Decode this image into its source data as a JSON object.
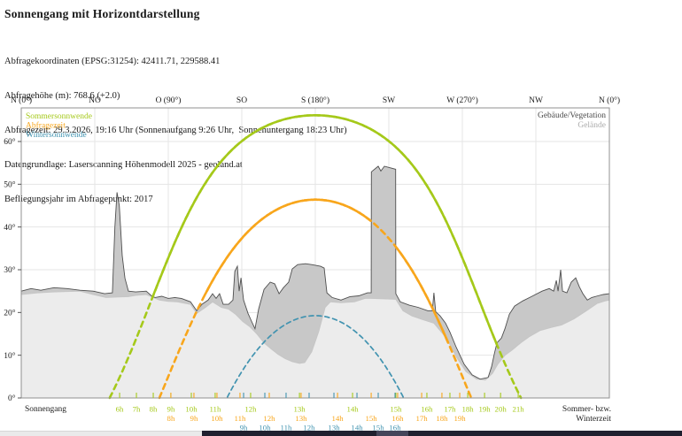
{
  "header": {
    "title": "Sonnengang mit Horizontdarstellung",
    "meta_lines": [
      "Abfragekoordinaten (EPSG:31254): 42411.71, 229588.41",
      "Abfragehöhe (m): 768.6 (+2.0)",
      "Abfragezeit: 29.3.2026, 19:16 Uhr (Sonnenaufgang 9:26 Uhr,  Sonnenuntergang 18:23 Uhr)",
      "Datengrundlage: Laserscanning Höhenmodell 2025 - geoland.at",
      "Befliegungsjahr im Abfragepunkt: 2017"
    ]
  },
  "chart_data": {
    "type": "line",
    "title": "Sonnengang mit Horizontdarstellung",
    "latitude_deg": 47.3,
    "axes": {
      "x_top_compass": [
        {
          "label": "N (0°)",
          "az": 0
        },
        {
          "label": "NO",
          "az": 45
        },
        {
          "label": "O (90°)",
          "az": 90
        },
        {
          "label": "SO",
          "az": 135
        },
        {
          "label": "S (180°)",
          "az": 180
        },
        {
          "label": "SW",
          "az": 225
        },
        {
          "label": "W (270°)",
          "az": 270
        },
        {
          "label": "NW",
          "az": 315
        },
        {
          "label": "N (0°)",
          "az": 360
        }
      ],
      "y_ticks_deg": [
        0,
        10,
        20,
        30,
        40,
        50,
        60
      ],
      "y_max_deg": 68,
      "x_range_deg": [
        0,
        360
      ],
      "grid": true
    },
    "legend": {
      "series": [
        {
          "label": "Sommersonnwende",
          "color": "#a5c91a"
        },
        {
          "label": "Abfragezeit",
          "color": "#f8a61c"
        },
        {
          "label": "Wintersonnwende",
          "color": "#4193b0"
        }
      ],
      "horizon": [
        {
          "label": "Gebäude/Vegetation",
          "color": "#4a4a4a"
        },
        {
          "label": "Gelände",
          "color": "#ababab"
        }
      ]
    },
    "sun_series": [
      {
        "name": "Sommersonnwende",
        "color": "#a5c91a",
        "declination_deg": 23.44,
        "peak_elevation_deg": 66.1,
        "width": 2.6,
        "dash": "6 5",
        "visible_az_ranges": [
          [
            80.4,
            291
          ]
        ],
        "hour_labels": [
          [
            "6h",
            60.2
          ],
          [
            "7h",
            70.5
          ],
          [
            "8h",
            80.8
          ],
          [
            "9h",
            91.6
          ],
          [
            "10h",
            104.1
          ],
          [
            "11h",
            118.7
          ],
          [
            "12h",
            140.4
          ],
          [
            "13h",
            170.3
          ],
          [
            "14h",
            202.8
          ],
          [
            "15h",
            229.3
          ],
          [
            "16h",
            248.3
          ],
          [
            "17h",
            262.4
          ],
          [
            "18h",
            273.3
          ],
          [
            "19h",
            283.6
          ],
          [
            "20h",
            293.4
          ],
          [
            "21h",
            304.2
          ]
        ]
      },
      {
        "name": "Abfragezeit",
        "color": "#f8a61c",
        "declination_deg": 3.7,
        "peak_elevation_deg": 46.4,
        "width": 2.6,
        "dash": "6 5",
        "visible_az_ranges": [
          [
            112.5,
            214.2
          ],
          [
            229.3,
            261.5
          ]
        ],
        "hour_labels": [
          [
            "8h",
            91.6
          ],
          [
            "9h",
            105.7
          ],
          [
            "10h",
            119.8
          ],
          [
            "11h",
            133.9
          ],
          [
            "12h",
            151.8
          ],
          [
            "13h",
            171.3
          ],
          [
            "14h",
            193.6
          ],
          [
            "15h",
            214.2
          ],
          [
            "16h",
            230.4
          ],
          [
            "17h",
            245.1
          ],
          [
            "18h",
            257.5
          ],
          [
            "19h",
            268.4
          ]
        ]
      },
      {
        "name": "Wintersonnwende",
        "color": "#4193b0",
        "declination_deg": -23.44,
        "peak_elevation_deg": 19.3,
        "width": 1.7,
        "dash": "5 4",
        "visible_az_ranges": [],
        "hour_labels": [
          [
            "9h",
            136.1
          ],
          [
            "10h",
            149.1
          ],
          [
            "11h",
            162.1
          ],
          [
            "12h",
            176.2
          ],
          [
            "13h",
            191.4
          ],
          [
            "14h",
            205.5
          ],
          [
            "15h",
            218.5
          ],
          [
            "16h",
            228.8
          ]
        ]
      }
    ],
    "horizon_profiles": {
      "gebaeude_vegetation_color": "#c8c8c8",
      "gebaeude_vegetation_stroke": "#4f4f4f",
      "gelaende_color": "#ececec",
      "gelaende_stroke": "#c6c6c6",
      "gebaeude_vegetation": [
        [
          0,
          25
        ],
        [
          6,
          25.6
        ],
        [
          12,
          25.2
        ],
        [
          20,
          25.8
        ],
        [
          28,
          25.6
        ],
        [
          36,
          25.2
        ],
        [
          44,
          25
        ],
        [
          51,
          24.4
        ],
        [
          55.8,
          24.6
        ],
        [
          57.3,
          40
        ],
        [
          58.6,
          48.1
        ],
        [
          60,
          45
        ],
        [
          61.8,
          33.3
        ],
        [
          63.5,
          28
        ],
        [
          65.6,
          25
        ],
        [
          70,
          24.8
        ],
        [
          76.5,
          25
        ],
        [
          80,
          23.8
        ],
        [
          82,
          23.5
        ],
        [
          86,
          23.8
        ],
        [
          90,
          23.3
        ],
        [
          94,
          23.5
        ],
        [
          98,
          23.3
        ],
        [
          103.6,
          22.5
        ],
        [
          107.4,
          20.4
        ],
        [
          110.6,
          21.9
        ],
        [
          114.4,
          22.9
        ],
        [
          117.1,
          24.4
        ],
        [
          119.3,
          23.3
        ],
        [
          121.4,
          24.4
        ],
        [
          123.6,
          21.9
        ],
        [
          126.9,
          21.9
        ],
        [
          129.6,
          22.9
        ],
        [
          130.7,
          29.6
        ],
        [
          132.3,
          30.8
        ],
        [
          133.4,
          25
        ],
        [
          134.5,
          28.1
        ],
        [
          136.1,
          22.9
        ],
        [
          138.8,
          19.8
        ],
        [
          141,
          17.9
        ],
        [
          143.1,
          16.2
        ],
        [
          145.3,
          20.8
        ],
        [
          148.6,
          25.4
        ],
        [
          152.4,
          27.1
        ],
        [
          155.1,
          26.7
        ],
        [
          157.8,
          24.4
        ],
        [
          160.5,
          25.8
        ],
        [
          163.7,
          27.1
        ],
        [
          165.9,
          30.2
        ],
        [
          169.2,
          31.2
        ],
        [
          174,
          31.4
        ],
        [
          177.8,
          31.2
        ],
        [
          183.2,
          30.8
        ],
        [
          185.4,
          30.4
        ],
        [
          187.1,
          24.6
        ],
        [
          190.3,
          23.5
        ],
        [
          195.7,
          22.9
        ],
        [
          201.2,
          23.7
        ],
        [
          206.6,
          23.9
        ],
        [
          212,
          24.6
        ],
        [
          214.2,
          24.6
        ],
        [
          214.3,
          52.9
        ],
        [
          218.5,
          54.2
        ],
        [
          220.1,
          53.1
        ],
        [
          222.3,
          54.2
        ],
        [
          229.2,
          53.5
        ],
        [
          229.3,
          24.4
        ],
        [
          232,
          22.5
        ],
        [
          237.5,
          21.7
        ],
        [
          242.9,
          21.2
        ],
        [
          248.9,
          20.4
        ],
        [
          251.6,
          20.4
        ],
        [
          252.6,
          24.6
        ],
        [
          253.7,
          20.2
        ],
        [
          256.4,
          19.2
        ],
        [
          259.7,
          17.5
        ],
        [
          262.4,
          15.4
        ],
        [
          266.2,
          11.9
        ],
        [
          271.1,
          7.9
        ],
        [
          276,
          5.4
        ],
        [
          280.9,
          4.4
        ],
        [
          285.8,
          4.8
        ],
        [
          287.9,
          7.3
        ],
        [
          289.6,
          10.4
        ],
        [
          291.2,
          12.9
        ],
        [
          293.9,
          14
        ],
        [
          296.1,
          16.2
        ],
        [
          298.8,
          19.6
        ],
        [
          302,
          21.5
        ],
        [
          306.9,
          22.7
        ],
        [
          312.3,
          23.7
        ],
        [
          318.8,
          25
        ],
        [
          323.2,
          25.6
        ],
        [
          325.9,
          25
        ],
        [
          327.5,
          27.5
        ],
        [
          328.6,
          25
        ],
        [
          330.2,
          30
        ],
        [
          331.3,
          25
        ],
        [
          334,
          24.6
        ],
        [
          336.7,
          27.1
        ],
        [
          339.4,
          28.1
        ],
        [
          341.6,
          26
        ],
        [
          343.8,
          24.4
        ],
        [
          346.5,
          22.9
        ],
        [
          349.2,
          23.5
        ],
        [
          353,
          23.9
        ],
        [
          356.3,
          24.2
        ],
        [
          360,
          24.4
        ]
      ],
      "gelaende": [
        [
          0,
          24.2
        ],
        [
          10,
          24.6
        ],
        [
          19.5,
          24.8
        ],
        [
          28,
          24.9
        ],
        [
          35.8,
          25
        ],
        [
          44,
          24.2
        ],
        [
          52,
          23.5
        ],
        [
          58,
          23.6
        ],
        [
          65.6,
          23.7
        ],
        [
          70,
          24
        ],
        [
          76.5,
          24.2
        ],
        [
          84.6,
          22.9
        ],
        [
          90,
          22.6
        ],
        [
          95.4,
          22.5
        ],
        [
          103.6,
          21.9
        ],
        [
          107.4,
          19.8
        ],
        [
          112.8,
          21.2
        ],
        [
          117.1,
          22.5
        ],
        [
          122.5,
          21.2
        ],
        [
          126.9,
          20.8
        ],
        [
          131.2,
          19.6
        ],
        [
          135.6,
          17.9
        ],
        [
          139.9,
          16.7
        ],
        [
          144.2,
          15
        ],
        [
          148.6,
          12.9
        ],
        [
          152.9,
          11.5
        ],
        [
          157.3,
          10.2
        ],
        [
          161.6,
          9.2
        ],
        [
          165.9,
          8.5
        ],
        [
          170.3,
          8.1
        ],
        [
          173.5,
          8.3
        ],
        [
          177.8,
          10.8
        ],
        [
          182.1,
          15.6
        ],
        [
          186,
          21.2
        ],
        [
          189.2,
          22.5
        ],
        [
          195.7,
          22.3
        ],
        [
          203.9,
          22.5
        ],
        [
          210.4,
          23.3
        ],
        [
          214.2,
          23.3
        ],
        [
          229.3,
          23.1
        ],
        [
          233.7,
          20.4
        ],
        [
          239.1,
          19.2
        ],
        [
          246.2,
          18.3
        ],
        [
          252.6,
          17.5
        ],
        [
          258.1,
          15
        ],
        [
          262.4,
          12.5
        ],
        [
          266.7,
          9.4
        ],
        [
          272.2,
          6.2
        ],
        [
          278.7,
          4.4
        ],
        [
          284.1,
          4.2
        ],
        [
          288.5,
          5.8
        ],
        [
          291.7,
          7.9
        ],
        [
          296.1,
          10
        ],
        [
          300.4,
          11.2
        ],
        [
          305.8,
          12.9
        ],
        [
          311.2,
          14.4
        ],
        [
          317.7,
          15.8
        ],
        [
          324.3,
          16.5
        ],
        [
          330.8,
          17.1
        ],
        [
          338.3,
          18.5
        ],
        [
          345.9,
          20.4
        ],
        [
          352.4,
          22.1
        ],
        [
          357.3,
          22.7
        ],
        [
          360,
          22.9
        ]
      ]
    },
    "footer": {
      "left": "Sonnengang",
      "right_line1": "Sommer- bzw.",
      "right_line2": "Winterzeit"
    }
  }
}
